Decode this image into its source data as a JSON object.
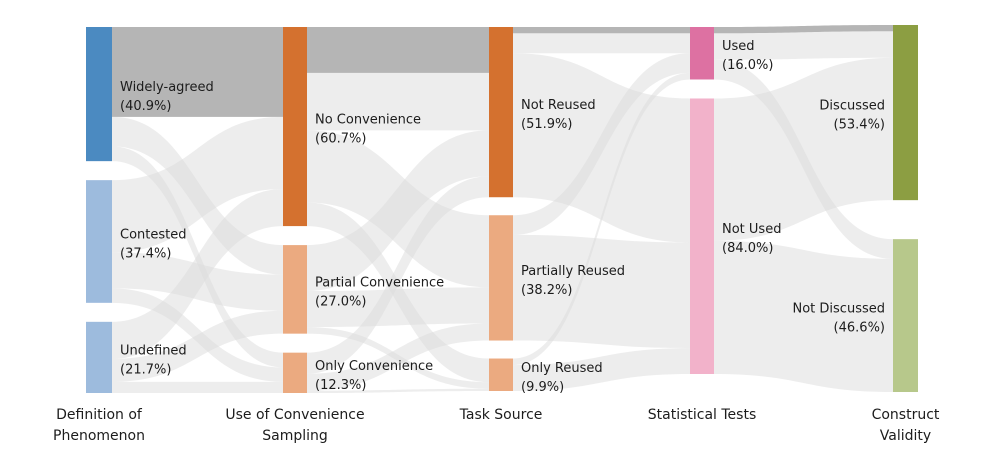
{
  "figure": {
    "background": "#ffffff",
    "flow_color": "#dcdcdc",
    "highlight_color": "#b5b5b5"
  },
  "chart_data": {
    "type": "sankey",
    "title": "",
    "flow_color": "#dcdcdc",
    "highlight_color": "#b5b5b5",
    "columns": [
      {
        "axis_label": [
          "Definition of",
          "Phenomenon"
        ],
        "nodes": [
          {
            "id": "widely_agreed",
            "label": "Widely-agreed",
            "pct_label": "(40.9%)",
            "value": 40.9,
            "color": "#4b8ac1"
          },
          {
            "id": "contested",
            "label": "Contested",
            "pct_label": "(37.4%)",
            "value": 37.4,
            "color": "#9dbbdd"
          },
          {
            "id": "undefined",
            "label": "Undefined",
            "pct_label": "(21.7%)",
            "value": 21.7,
            "color": "#9dbbdd"
          }
        ]
      },
      {
        "axis_label": [
          "Use of Convenience",
          "Sampling"
        ],
        "nodes": [
          {
            "id": "no_convenience",
            "label": "No Convenience",
            "pct_label": "(60.7%)",
            "value": 60.7,
            "color": "#d4712f"
          },
          {
            "id": "partial_convenience",
            "label": "Partial Convenience",
            "pct_label": "(27.0%)",
            "value": 27.0,
            "color": "#ebaa80"
          },
          {
            "id": "only_convenience",
            "label": "Only Convenience",
            "pct_label": "(12.3%)",
            "value": 12.3,
            "color": "#ebaa80"
          }
        ]
      },
      {
        "axis_label": [
          "Task Source"
        ],
        "nodes": [
          {
            "id": "not_reused",
            "label": "Not Reused",
            "pct_label": "(51.9%)",
            "value": 51.9,
            "color": "#d4712f"
          },
          {
            "id": "partially_reused",
            "label": "Partially Reused",
            "pct_label": "(38.2%)",
            "value": 38.2,
            "color": "#ebaa80"
          },
          {
            "id": "only_reused",
            "label": "Only Reused",
            "pct_label": "(9.9%)",
            "value": 9.9,
            "color": "#ebaa80"
          }
        ]
      },
      {
        "axis_label": [
          "Statistical Tests"
        ],
        "nodes": [
          {
            "id": "used",
            "label": "Used",
            "pct_label": "(16.0%)",
            "value": 16.0,
            "color": "#dd71a2"
          },
          {
            "id": "not_used",
            "label": "Not Used",
            "pct_label": "(84.0%)",
            "value": 84.0,
            "color": "#f2b2ca"
          }
        ]
      },
      {
        "axis_label": [
          "Construct",
          "Validity"
        ],
        "nodes": [
          {
            "id": "discussed",
            "label": "Discussed",
            "pct_label": "(53.4%)",
            "value": 53.4,
            "color": "#8c9e42"
          },
          {
            "id": "not_discussed",
            "label": "Not Discussed",
            "pct_label": "(46.6%)",
            "value": 46.6,
            "color": "#b7c88b"
          }
        ]
      }
    ],
    "flows": [
      {
        "source": "widely_agreed",
        "target": "no_convenience",
        "value": 27.4
      },
      {
        "source": "widely_agreed",
        "target": "partial_convenience",
        "value": 9.0
      },
      {
        "source": "widely_agreed",
        "target": "only_convenience",
        "value": 4.5
      },
      {
        "source": "contested",
        "target": "no_convenience",
        "value": 22.0
      },
      {
        "source": "contested",
        "target": "partial_convenience",
        "value": 11.0
      },
      {
        "source": "contested",
        "target": "only_convenience",
        "value": 4.4
      },
      {
        "source": "undefined",
        "target": "no_convenience",
        "value": 11.3
      },
      {
        "source": "undefined",
        "target": "partial_convenience",
        "value": 7.0
      },
      {
        "source": "undefined",
        "target": "only_convenience",
        "value": 3.4
      },
      {
        "source": "no_convenience",
        "target": "not_reused",
        "value": 31.5
      },
      {
        "source": "no_convenience",
        "target": "partially_reused",
        "value": 22.0
      },
      {
        "source": "no_convenience",
        "target": "only_reused",
        "value": 7.2
      },
      {
        "source": "partial_convenience",
        "target": "not_reused",
        "value": 14.0
      },
      {
        "source": "partial_convenience",
        "target": "partially_reused",
        "value": 11.0
      },
      {
        "source": "partial_convenience",
        "target": "only_reused",
        "value": 2.0
      },
      {
        "source": "only_convenience",
        "target": "not_reused",
        "value": 6.4
      },
      {
        "source": "only_convenience",
        "target": "partially_reused",
        "value": 5.2
      },
      {
        "source": "only_convenience",
        "target": "only_reused",
        "value": 0.7
      },
      {
        "source": "not_reused",
        "target": "used",
        "value": 8.0
      },
      {
        "source": "not_reused",
        "target": "not_used",
        "value": 43.9
      },
      {
        "source": "partially_reused",
        "target": "used",
        "value": 6.0
      },
      {
        "source": "partially_reused",
        "target": "not_used",
        "value": 32.2
      },
      {
        "source": "only_reused",
        "target": "used",
        "value": 2.0
      },
      {
        "source": "only_reused",
        "target": "not_used",
        "value": 7.9
      },
      {
        "source": "used",
        "target": "discussed",
        "value": 10.0
      },
      {
        "source": "used",
        "target": "not_discussed",
        "value": 6.0
      },
      {
        "source": "not_used",
        "target": "discussed",
        "value": 43.4
      },
      {
        "source": "not_used",
        "target": "not_discussed",
        "value": 40.6
      }
    ],
    "highlight_flows": [
      {
        "source": "widely_agreed",
        "target": "no_convenience",
        "value": 27.4
      },
      {
        "source": "no_convenience",
        "target": "not_reused",
        "value": 14.0
      },
      {
        "source": "not_reused",
        "target": "used",
        "value": 1.9
      },
      {
        "source": "used",
        "target": "discussed",
        "value": 1.9
      }
    ]
  }
}
